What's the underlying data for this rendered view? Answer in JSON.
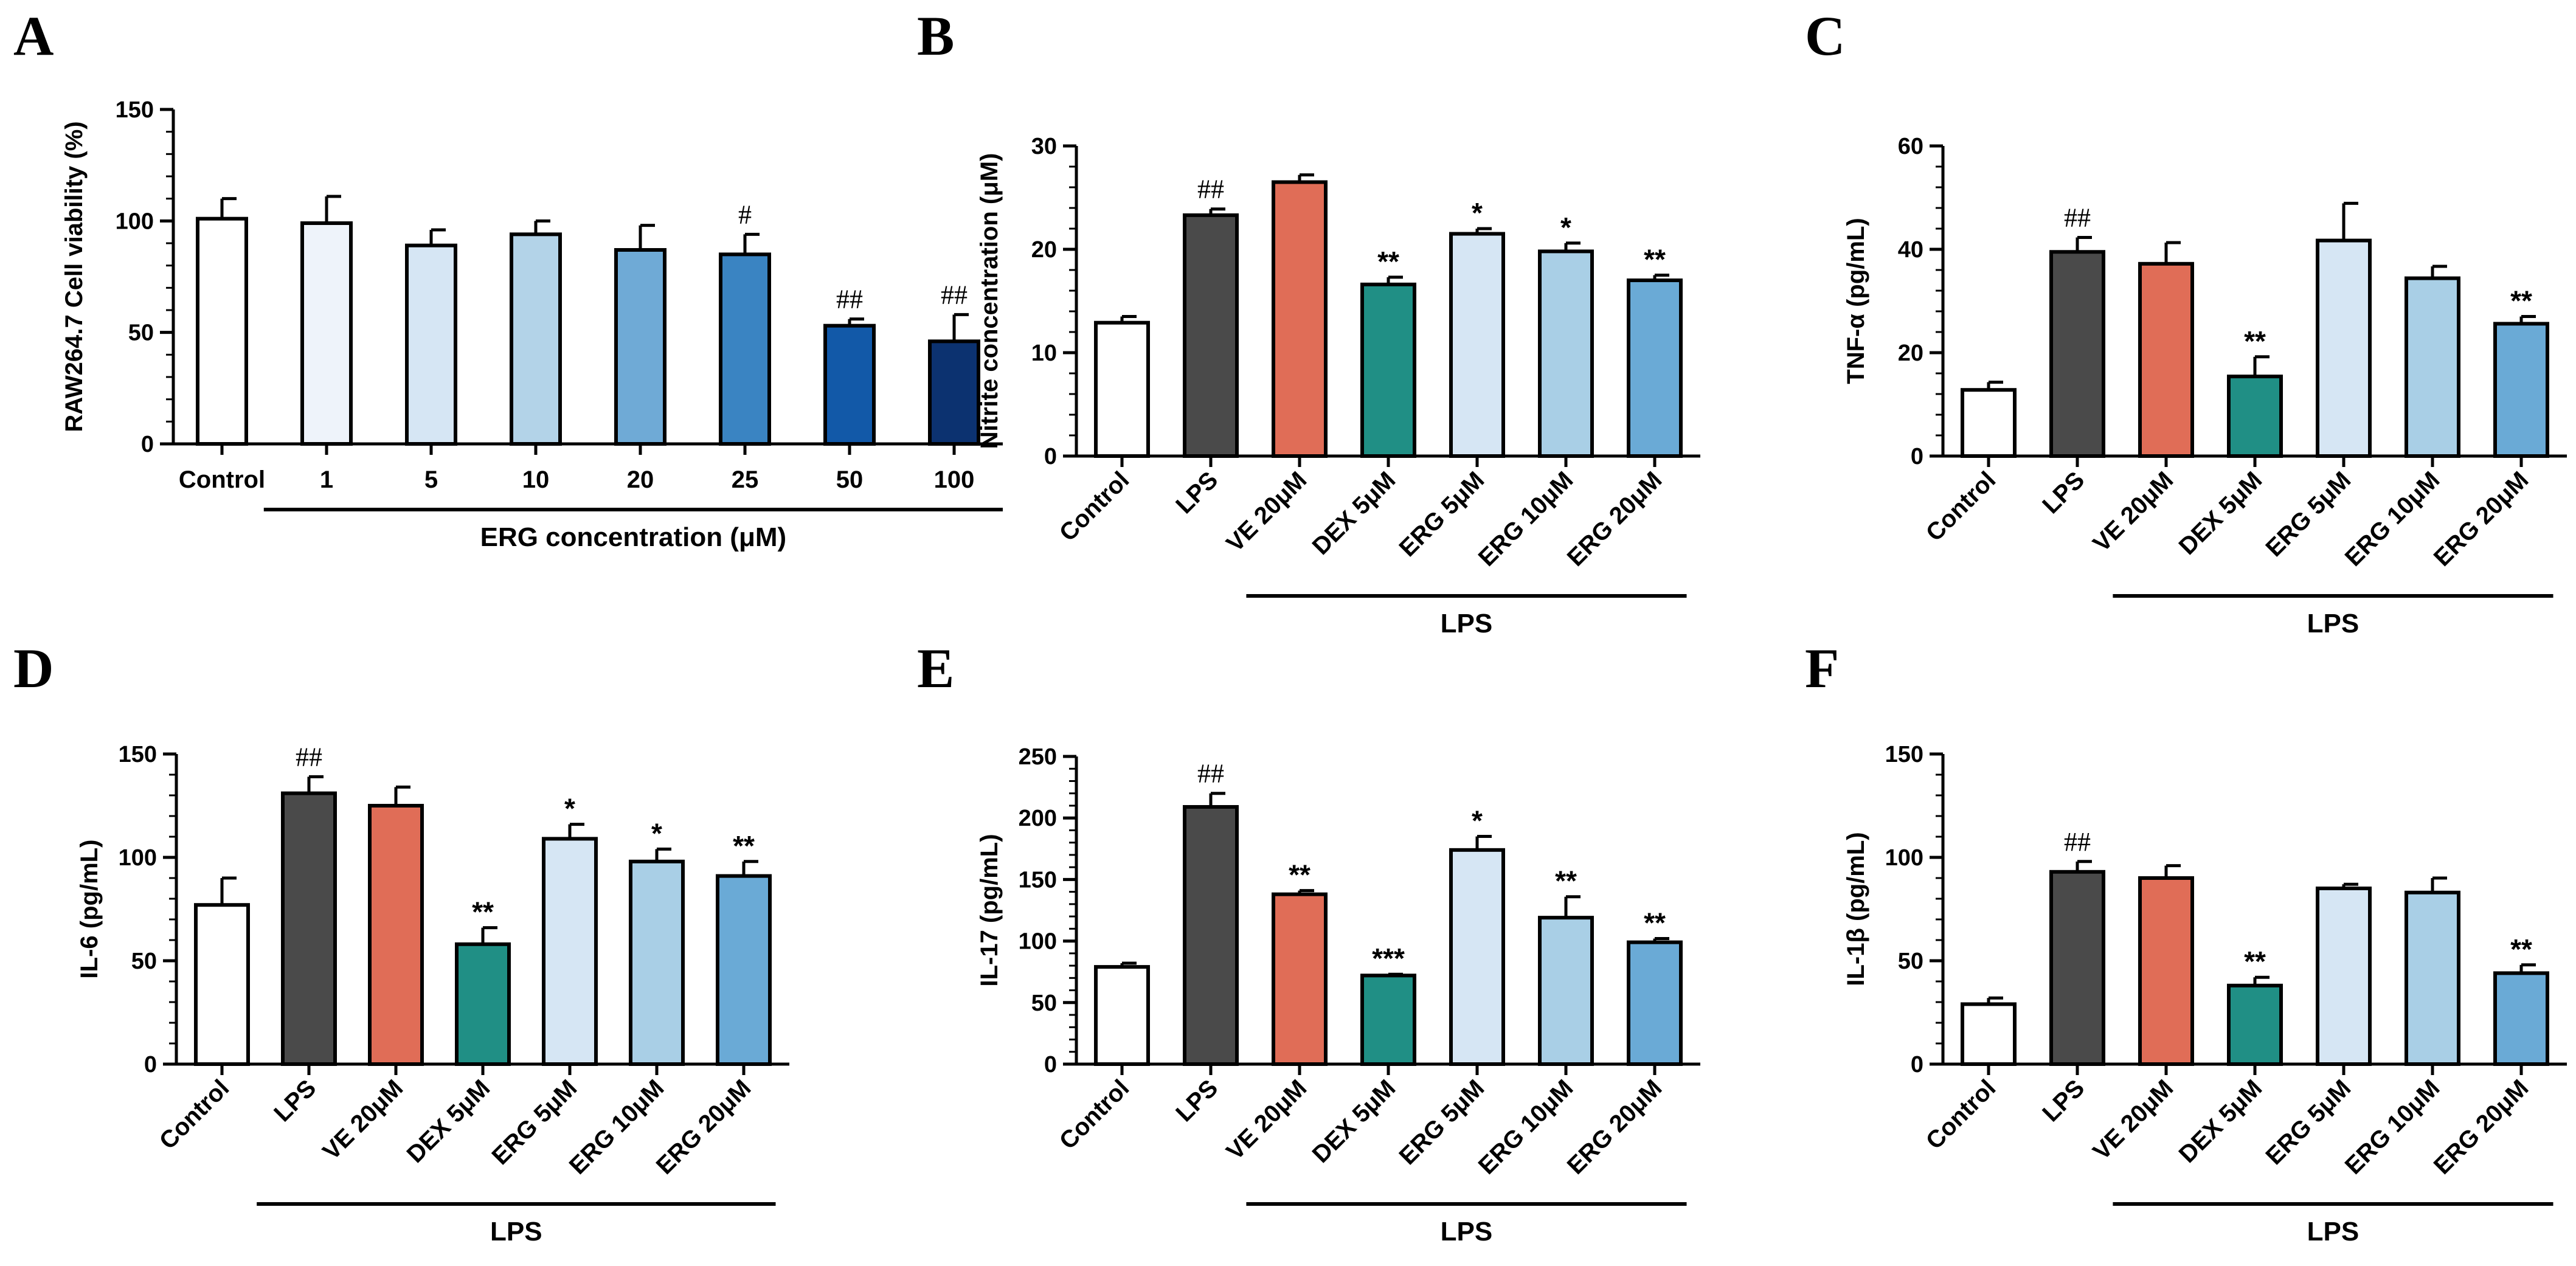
{
  "chart_data": [
    {
      "panel": "A",
      "type": "bar",
      "ylabel": "RAW264.7 Cell viability (%)",
      "ylim": [
        0,
        150
      ],
      "yticks": [
        0,
        50,
        100,
        150
      ],
      "categories": [
        "Control",
        "1",
        "5",
        "10",
        "20",
        "25",
        "50",
        "100"
      ],
      "values": [
        101,
        99,
        89,
        94,
        87,
        85,
        53,
        46
      ],
      "errors": [
        9,
        12,
        7,
        6,
        11,
        9,
        3,
        12
      ],
      "significance": [
        "",
        "",
        "",
        "",
        "",
        "#",
        "##",
        "##"
      ],
      "colors": [
        "#ffffff",
        "#eef3fa",
        "#d6e6f4",
        "#b3d3e8",
        "#6faad6",
        "#3a84c2",
        "#1259a8",
        "#0c3270"
      ],
      "group_label": "ERG concentration (μM)",
      "group_start": 1,
      "rotate_labels": false
    },
    {
      "panel": "B",
      "type": "bar",
      "ylabel": "Nitrite concentration (μM)",
      "ylim": [
        0,
        30
      ],
      "yticks": [
        0,
        10,
        20,
        30
      ],
      "categories": [
        "Control",
        "LPS",
        "VE 20μM",
        "DEX 5μM",
        "ERG 5μM",
        "ERG 10μM",
        "ERG 20μM"
      ],
      "values": [
        12.9,
        23.3,
        26.5,
        16.6,
        21.5,
        19.8,
        17.0
      ],
      "errors": [
        0.6,
        0.6,
        0.7,
        0.7,
        0.5,
        0.8,
        0.5
      ],
      "significance": [
        "",
        "##",
        "",
        "**",
        "*",
        "*",
        "**"
      ],
      "colors": [
        "#ffffff",
        "#4a4a4a",
        "#e06d57",
        "#208f85",
        "#d6e6f4",
        "#a9cfe6",
        "#6aaad6"
      ],
      "group_label": "LPS",
      "group_start": 2,
      "rotate_labels": true
    },
    {
      "panel": "C",
      "type": "bar",
      "ylabel": "TNF-α (pg/mL)",
      "ylim": [
        0,
        60
      ],
      "yticks": [
        0,
        20,
        40,
        60
      ],
      "categories": [
        "Control",
        "LPS",
        "VE 20μM",
        "DEX 5μM",
        "ERG 5μM",
        "ERG 10μM",
        "ERG 20μM"
      ],
      "values": [
        12.8,
        39.5,
        37.2,
        15.4,
        41.7,
        34.4,
        25.6
      ],
      "errors": [
        1.5,
        2.8,
        4.1,
        3.8,
        7.2,
        2.3,
        1.4
      ],
      "significance": [
        "",
        "##",
        "",
        "**",
        "",
        "",
        "**"
      ],
      "colors": [
        "#ffffff",
        "#4a4a4a",
        "#e06d57",
        "#208f85",
        "#d6e6f4",
        "#a9cfe6",
        "#6aaad6"
      ],
      "group_label": "LPS",
      "group_start": 2,
      "rotate_labels": true
    },
    {
      "panel": "D",
      "type": "bar",
      "ylabel": "IL-6 (pg/mL)",
      "ylim": [
        0,
        150
      ],
      "yticks": [
        0,
        50,
        100,
        150
      ],
      "categories": [
        "Control",
        "LPS",
        "VE 20μM",
        "DEX 5μM",
        "ERG 5μM",
        "ERG 10μM",
        "ERG 20μM"
      ],
      "values": [
        77,
        131,
        125,
        58,
        109,
        98,
        91
      ],
      "errors": [
        13,
        8,
        9,
        8,
        7,
        6,
        7
      ],
      "significance": [
        "",
        "##",
        "",
        "**",
        "*",
        "*",
        "**"
      ],
      "colors": [
        "#ffffff",
        "#4a4a4a",
        "#e06d57",
        "#208f85",
        "#d6e6f4",
        "#a9cfe6",
        "#6aaad6"
      ],
      "group_label": "LPS",
      "group_start": 1,
      "rotate_labels": true
    },
    {
      "panel": "E",
      "type": "bar",
      "ylabel": "IL-17 (pg/mL)",
      "ylim": [
        0,
        250
      ],
      "yticks": [
        0,
        50,
        100,
        150,
        200,
        250
      ],
      "categories": [
        "Control",
        "LPS",
        "VE 20μM",
        "DEX 5μM",
        "ERG 5μM",
        "ERG 10μM",
        "ERG 20μM"
      ],
      "values": [
        79,
        209,
        138,
        72,
        174,
        119,
        99
      ],
      "errors": [
        3,
        11,
        3,
        1,
        11,
        17,
        3
      ],
      "significance": [
        "",
        "##",
        "**",
        "***",
        "*",
        "**",
        "**"
      ],
      "colors": [
        "#ffffff",
        "#4a4a4a",
        "#e06d57",
        "#208f85",
        "#d6e6f4",
        "#a9cfe6",
        "#6aaad6"
      ],
      "group_label": "LPS",
      "group_start": 2,
      "rotate_labels": true
    },
    {
      "panel": "F",
      "type": "bar",
      "ylabel": "IL-1β (pg/mL)",
      "ylim": [
        0,
        150
      ],
      "yticks": [
        0,
        50,
        100,
        150
      ],
      "categories": [
        "Control",
        "LPS",
        "VE 20μM",
        "DEX 5μM",
        "ERG 5μM",
        "ERG 10μM",
        "ERG 20μM"
      ],
      "values": [
        29,
        93,
        90,
        38,
        85,
        83,
        44
      ],
      "errors": [
        3,
        5,
        6,
        4,
        2,
        7,
        4
      ],
      "significance": [
        "",
        "##",
        "",
        "**",
        "",
        "",
        "**"
      ],
      "colors": [
        "#ffffff",
        "#4a4a4a",
        "#e06d57",
        "#208f85",
        "#d6e6f4",
        "#a9cfe6",
        "#6aaad6"
      ],
      "group_label": "LPS",
      "group_start": 2,
      "rotate_labels": true
    }
  ]
}
